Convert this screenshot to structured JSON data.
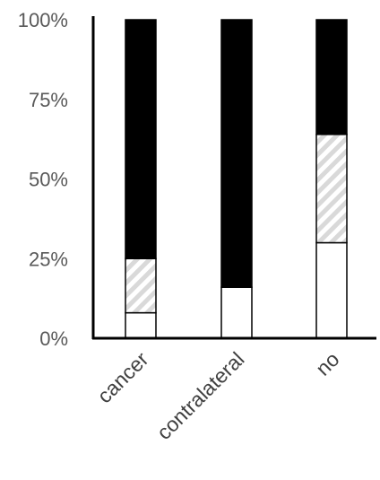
{
  "chart_data": {
    "type": "bar",
    "stacked": true,
    "percent": true,
    "title": "",
    "xlabel": "",
    "ylabel": "",
    "ylim": [
      0,
      100
    ],
    "yticks": [
      "0%",
      "25%",
      "50%",
      "75%",
      "100%"
    ],
    "categories": [
      "cancer",
      "contralateral",
      "no"
    ],
    "series": [
      {
        "values": [
          8,
          16,
          30
        ],
        "color": "#ffffff",
        "pattern": "solid"
      },
      {
        "values": [
          17,
          0,
          34
        ],
        "color": "#d9d9d9",
        "pattern": "diagonal-hatch"
      },
      {
        "values": [
          75,
          84,
          36
        ],
        "color": "#000000",
        "pattern": "solid"
      }
    ],
    "grid": false,
    "legend": "none"
  }
}
